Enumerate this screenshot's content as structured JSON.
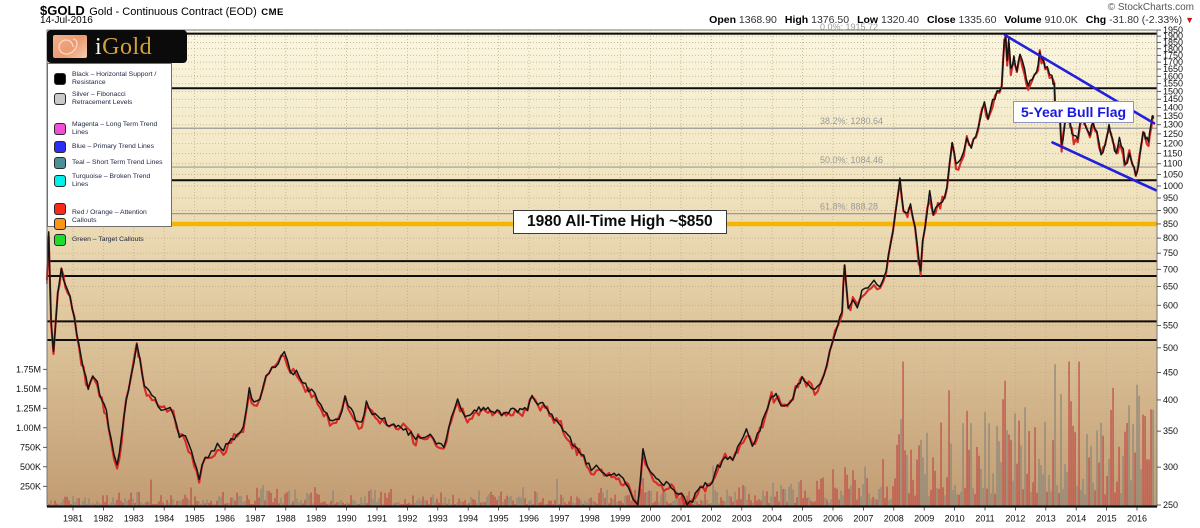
{
  "header": {
    "symbol": "$GOLD",
    "description": "Gold - Continuous Contract (EOD)",
    "exchange": "CME",
    "date": "14-Jul-2016",
    "copyright": "© StockCharts.com",
    "quote_fields": [
      {
        "label": "Open",
        "value": "1368.90"
      },
      {
        "label": "High",
        "value": "1376.50"
      },
      {
        "label": "Low",
        "value": "1320.40"
      },
      {
        "label": "Close",
        "value": "1335.60"
      },
      {
        "label": "Volume",
        "value": "910.0K"
      },
      {
        "label": "Chg",
        "value": "-31.80 (-2.33%)"
      }
    ],
    "chg_arrow": "▼",
    "chg_arrow_color": "#cc1111"
  },
  "logo": {
    "text_i": "i",
    "text_gold": "Gold",
    "image": "fibonacci-spiral"
  },
  "legend": {
    "items": [
      {
        "colors": [
          "#000000"
        ],
        "label": "Black – Horizontal Support / Resistance",
        "gap_after": false
      },
      {
        "colors": [
          "#c9c9c9"
        ],
        "label": "Silver – Fibonacci Retracement Levels",
        "gap_after": true
      },
      {
        "colors": [
          "#f24fd8"
        ],
        "label": "Magenta – Long Term Trend Lines",
        "gap_after": false
      },
      {
        "colors": [
          "#2e2ef2"
        ],
        "label": "Blue – Primary Trend Lines",
        "gap_after": false
      },
      {
        "colors": [
          "#4d8f99"
        ],
        "label": "Teal – Short Term Trend Lines",
        "gap_after": false
      },
      {
        "colors": [
          "#00f0f0"
        ],
        "label": "Turquoise – Broken Trend Lines",
        "gap_after": true
      },
      {
        "colors": [
          "#fa291c",
          "#fa9616"
        ],
        "label": "Red / Orange – Attention Callouts",
        "gap_after": false
      },
      {
        "colors": [
          "#1ddd2a"
        ],
        "label": "Green – Target Callouts",
        "gap_after": false
      }
    ]
  },
  "callouts": {
    "all_time_high": "1980 All-Time High ~$850",
    "bull_flag": "5-Year Bull Flag"
  },
  "chart_data": {
    "type": "line",
    "title": "$GOLD Gold - Continuous Contract (EOD) CME",
    "x_axis": {
      "start": 1981,
      "end": 2016,
      "step": 1
    },
    "y_axis": {
      "scale": "log",
      "min": 250,
      "max": 1950,
      "tick_step": 50,
      "side": "right"
    },
    "volume_axis": {
      "side": "left",
      "ticks": [
        [
          "1.75M",
          1750
        ],
        [
          "1.50M",
          1500
        ],
        [
          "1.25M",
          1250
        ],
        [
          "1.00M",
          1000
        ],
        [
          "750K",
          750
        ],
        [
          "500K",
          500
        ],
        [
          "250K",
          250
        ]
      ]
    },
    "fib_levels": [
      {
        "label": "0.0%: 1915.72",
        "value": 1915.72
      },
      {
        "label": "38.2%: 1280.64",
        "value": 1280.64
      },
      {
        "label": "50.0%: 1084.46",
        "value": 1084.46
      },
      {
        "label": "61.8%: 888.28",
        "value": 888.28
      }
    ],
    "support_resistance_levels": [
      1920,
      1520,
      1025,
      725,
      680,
      560,
      517
    ],
    "gold_highlight_level": 850,
    "trendlines": [
      {
        "name": "bull-flag-upper",
        "from": [
          2011.66,
          1908
        ],
        "to": [
          2016.56,
          1308
        ],
        "color": "#2020dd"
      },
      {
        "name": "bull-flag-lower",
        "from": [
          2013.22,
          1205
        ],
        "to": [
          2016.62,
          982
        ],
        "color": "#2020dd"
      }
    ],
    "series": [
      {
        "name": "Gold price (USD)",
        "points": [
          [
            1980.14,
            660
          ],
          [
            1980.2,
            830
          ],
          [
            1980.28,
            560
          ],
          [
            1980.36,
            490
          ],
          [
            1980.5,
            640
          ],
          [
            1980.62,
            700
          ],
          [
            1980.75,
            660
          ],
          [
            1980.9,
            620
          ],
          [
            1981.05,
            570
          ],
          [
            1981.2,
            500
          ],
          [
            1981.35,
            460
          ],
          [
            1981.5,
            420
          ],
          [
            1981.65,
            440
          ],
          [
            1981.8,
            430
          ],
          [
            1981.95,
            400
          ],
          [
            1982.1,
            380
          ],
          [
            1982.25,
            340
          ],
          [
            1982.45,
            302
          ],
          [
            1982.6,
            340
          ],
          [
            1982.75,
            400
          ],
          [
            1982.9,
            440
          ],
          [
            1983.1,
            505
          ],
          [
            1983.2,
            480
          ],
          [
            1983.35,
            425
          ],
          [
            1983.5,
            415
          ],
          [
            1983.7,
            400
          ],
          [
            1983.9,
            385
          ],
          [
            1984.1,
            390
          ],
          [
            1984.3,
            380
          ],
          [
            1984.5,
            345
          ],
          [
            1984.7,
            340
          ],
          [
            1984.9,
            320
          ],
          [
            1985.15,
            288
          ],
          [
            1985.35,
            315
          ],
          [
            1985.55,
            320
          ],
          [
            1985.75,
            330
          ],
          [
            1985.95,
            325
          ],
          [
            1986.2,
            340
          ],
          [
            1986.4,
            345
          ],
          [
            1986.6,
            355
          ],
          [
            1986.8,
            420
          ],
          [
            1986.95,
            395
          ],
          [
            1987.15,
            405
          ],
          [
            1987.35,
            450
          ],
          [
            1987.55,
            460
          ],
          [
            1987.75,
            465
          ],
          [
            1987.95,
            495
          ],
          [
            1988.15,
            455
          ],
          [
            1988.35,
            450
          ],
          [
            1988.55,
            435
          ],
          [
            1988.75,
            420
          ],
          [
            1988.95,
            415
          ],
          [
            1989.15,
            390
          ],
          [
            1989.35,
            375
          ],
          [
            1989.55,
            365
          ],
          [
            1989.75,
            370
          ],
          [
            1989.95,
            405
          ],
          [
            1990.15,
            385
          ],
          [
            1990.3,
            370
          ],
          [
            1990.5,
            360
          ],
          [
            1990.65,
            400
          ],
          [
            1990.85,
            380
          ],
          [
            1991.1,
            370
          ],
          [
            1991.4,
            360
          ],
          [
            1991.7,
            355
          ],
          [
            1991.95,
            355
          ],
          [
            1992.2,
            340
          ],
          [
            1992.5,
            340
          ],
          [
            1992.75,
            345
          ],
          [
            1992.95,
            335
          ],
          [
            1993.2,
            328
          ],
          [
            1993.45,
            370
          ],
          [
            1993.65,
            400
          ],
          [
            1993.9,
            370
          ],
          [
            1994.2,
            380
          ],
          [
            1994.5,
            385
          ],
          [
            1994.8,
            385
          ],
          [
            1995.1,
            378
          ],
          [
            1995.4,
            385
          ],
          [
            1995.7,
            383
          ],
          [
            1995.95,
            388
          ],
          [
            1996.1,
            412
          ],
          [
            1996.3,
            395
          ],
          [
            1996.6,
            385
          ],
          [
            1996.9,
            370
          ],
          [
            1997.2,
            350
          ],
          [
            1997.5,
            330
          ],
          [
            1997.8,
            315
          ],
          [
            1998.05,
            295
          ],
          [
            1998.3,
            300
          ],
          [
            1998.55,
            292
          ],
          [
            1998.8,
            290
          ],
          [
            1999.1,
            285
          ],
          [
            1999.35,
            270
          ],
          [
            1999.58,
            254
          ],
          [
            1999.75,
            325
          ],
          [
            1999.9,
            300
          ],
          [
            2000.1,
            290
          ],
          [
            2000.35,
            278
          ],
          [
            2000.6,
            280
          ],
          [
            2000.85,
            268
          ],
          [
            2001.1,
            262
          ],
          [
            2001.3,
            257
          ],
          [
            2001.55,
            272
          ],
          [
            2001.8,
            278
          ],
          [
            2001.95,
            276
          ],
          [
            2002.2,
            300
          ],
          [
            2002.45,
            315
          ],
          [
            2002.7,
            312
          ],
          [
            2002.95,
            330
          ],
          [
            2003.15,
            350
          ],
          [
            2003.35,
            330
          ],
          [
            2003.6,
            355
          ],
          [
            2003.85,
            385
          ],
          [
            2003.98,
            410
          ],
          [
            2004.2,
            405
          ],
          [
            2004.4,
            388
          ],
          [
            2004.6,
            400
          ],
          [
            2004.85,
            430
          ],
          [
            2004.98,
            440
          ],
          [
            2005.2,
            428
          ],
          [
            2005.4,
            420
          ],
          [
            2005.6,
            435
          ],
          [
            2005.8,
            470
          ],
          [
            2005.98,
            515
          ],
          [
            2006.15,
            555
          ],
          [
            2006.3,
            590
          ],
          [
            2006.38,
            720
          ],
          [
            2006.5,
            590
          ],
          [
            2006.65,
            620
          ],
          [
            2006.8,
            600
          ],
          [
            2006.95,
            635
          ],
          [
            2007.15,
            655
          ],
          [
            2007.35,
            665
          ],
          [
            2007.55,
            655
          ],
          [
            2007.75,
            700
          ],
          [
            2007.9,
            790
          ],
          [
            2008.05,
            890
          ],
          [
            2008.2,
            1025
          ],
          [
            2008.32,
            910
          ],
          [
            2008.45,
            890
          ],
          [
            2008.55,
            930
          ],
          [
            2008.7,
            840
          ],
          [
            2008.82,
            730
          ],
          [
            2008.88,
            690
          ],
          [
            2008.95,
            800
          ],
          [
            2009.1,
            900
          ],
          [
            2009.18,
            970
          ],
          [
            2009.3,
            890
          ],
          [
            2009.45,
            930
          ],
          [
            2009.6,
            945
          ],
          [
            2009.75,
            995
          ],
          [
            2009.92,
            1210
          ],
          [
            2010.05,
            1100
          ],
          [
            2010.2,
            1115
          ],
          [
            2010.4,
            1230
          ],
          [
            2010.55,
            1180
          ],
          [
            2010.7,
            1250
          ],
          [
            2010.85,
            1350
          ],
          [
            2010.98,
            1420
          ],
          [
            2011.1,
            1330
          ],
          [
            2011.25,
            1440
          ],
          [
            2011.4,
            1510
          ],
          [
            2011.55,
            1530
          ],
          [
            2011.63,
            1850
          ],
          [
            2011.68,
            1905
          ],
          [
            2011.73,
            1700
          ],
          [
            2011.78,
            1880
          ],
          [
            2011.85,
            1640
          ],
          [
            2011.95,
            1745
          ],
          [
            2012.05,
            1650
          ],
          [
            2012.15,
            1780
          ],
          [
            2012.3,
            1640
          ],
          [
            2012.42,
            1545
          ],
          [
            2012.55,
            1590
          ],
          [
            2012.7,
            1620
          ],
          [
            2012.8,
            1780
          ],
          [
            2012.92,
            1700
          ],
          [
            2013.05,
            1670
          ],
          [
            2013.2,
            1590
          ],
          [
            2013.28,
            1555
          ],
          [
            2013.32,
            1370
          ],
          [
            2013.45,
            1390
          ],
          [
            2013.52,
            1190
          ],
          [
            2013.62,
            1290
          ],
          [
            2013.68,
            1395
          ],
          [
            2013.8,
            1310
          ],
          [
            2013.92,
            1230
          ],
          [
            2014.05,
            1240
          ],
          [
            2014.2,
            1380
          ],
          [
            2014.32,
            1290
          ],
          [
            2014.45,
            1250
          ],
          [
            2014.55,
            1330
          ],
          [
            2014.68,
            1260
          ],
          [
            2014.82,
            1145
          ],
          [
            2014.95,
            1195
          ],
          [
            2015.08,
            1295
          ],
          [
            2015.2,
            1210
          ],
          [
            2015.32,
            1150
          ],
          [
            2015.42,
            1225
          ],
          [
            2015.55,
            1160
          ],
          [
            2015.62,
            1085
          ],
          [
            2015.75,
            1160
          ],
          [
            2015.85,
            1105
          ],
          [
            2015.96,
            1050
          ],
          [
            2016.05,
            1090
          ],
          [
            2016.12,
            1180
          ],
          [
            2016.2,
            1260
          ],
          [
            2016.28,
            1230
          ],
          [
            2016.38,
            1215
          ],
          [
            2016.45,
            1290
          ],
          [
            2016.5,
            1365
          ],
          [
            2016.54,
            1335
          ]
        ]
      }
    ],
    "volume_profile_avg_K": {
      "1980": 50,
      "1981": 60,
      "1982": 70,
      "1983": 80,
      "1984": 70,
      "1985": 65,
      "1986": 80,
      "1987": 110,
      "1988": 100,
      "1989": 90,
      "1990": 90,
      "1991": 75,
      "1992": 70,
      "1993": 80,
      "1994": 80,
      "1995": 75,
      "1996": 80,
      "1997": 85,
      "1998": 90,
      "1999": 100,
      "2000": 85,
      "2001": 90,
      "2002": 100,
      "2003": 130,
      "2004": 150,
      "2005": 160,
      "2006": 220,
      "2007": 280,
      "2008": 420,
      "2009": 480,
      "2010": 520,
      "2011": 620,
      "2012": 580,
      "2013": 650,
      "2014": 580,
      "2015": 620,
      "2016": 720
    },
    "volume_spikes_K": [
      [
        1999.75,
        350
      ],
      [
        2006.4,
        600
      ],
      [
        2008.2,
        1250
      ],
      [
        2008.85,
        1150
      ],
      [
        2009.9,
        1100
      ],
      [
        2010.4,
        1150
      ],
      [
        2011.65,
        1600
      ],
      [
        2011.8,
        1300
      ],
      [
        2013.3,
        1800
      ],
      [
        2013.5,
        1450
      ],
      [
        2014.8,
        1200
      ],
      [
        2015.6,
        1250
      ],
      [
        2016.45,
        1300
      ],
      [
        2016.52,
        1250
      ]
    ]
  },
  "colors": {
    "price_up": "#141414",
    "price_down": "#d92b25",
    "gold_line": "#f5b500",
    "fib_line": "#9a9a9a",
    "support_line": "#0d0d0d",
    "trend_blue": "#2020dd",
    "vol_red": "#c0504a",
    "vol_grey": "#8d887b",
    "bg_top": "#faf6e0",
    "bg_bottom": "#c29c73"
  }
}
